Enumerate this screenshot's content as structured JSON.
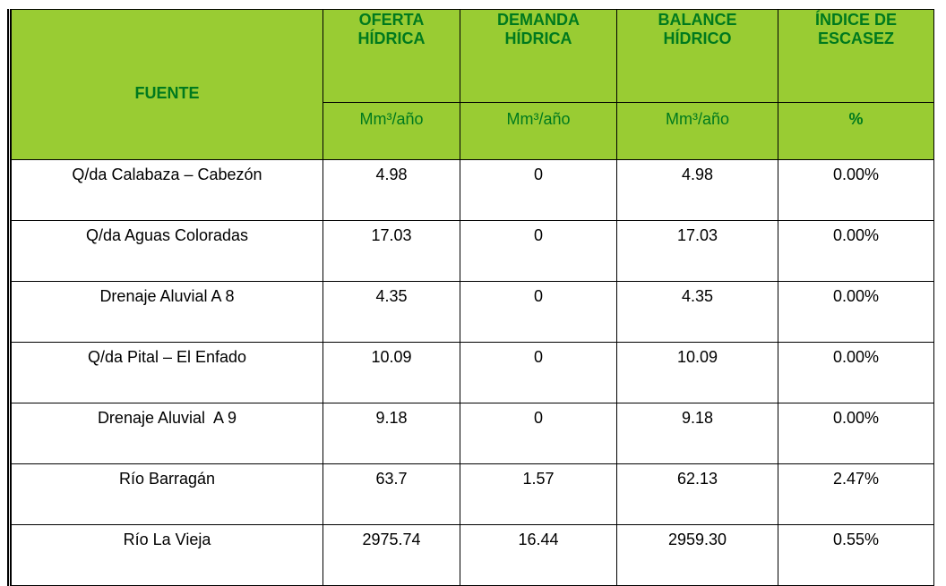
{
  "table": {
    "header": [
      "FUENTE",
      "OFERTA HÍDRICA",
      "DEMANDA HÍDRICA",
      "BALANCE HÍDRICO",
      "ÍNDICE DE ESCASEZ"
    ],
    "units": [
      "Mm³/año",
      "Mm³/año",
      "Mm³/año",
      "%"
    ],
    "rows": [
      [
        "Q/da Calabaza – Cabezón",
        "4.98",
        "0",
        "4.98",
        "0.00%"
      ],
      [
        "Q/da Aguas Coloradas",
        "17.03",
        "0",
        "17.03",
        "0.00%"
      ],
      [
        "Drenaje Aluvial A 8",
        "4.35",
        "0",
        "4.35",
        "0.00%"
      ],
      [
        "Q/da Pital – El Enfado",
        "10.09",
        "0",
        "10.09",
        "0.00%"
      ],
      [
        "Drenaje Aluvial  A 9",
        "9.18",
        "0",
        "9.18",
        "0.00%"
      ],
      [
        "Río Barragán",
        "63.7",
        "1.57",
        "62.13",
        "2.47%"
      ],
      [
        "Río La Vieja",
        "2975.74",
        "16.44",
        "2959.30",
        "0.55%"
      ]
    ]
  }
}
